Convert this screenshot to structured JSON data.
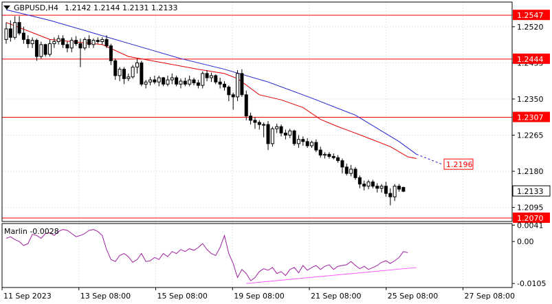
{
  "chart_data": {
    "type": "candlestick",
    "header": {
      "symbol": "GBPUSD,H4",
      "ohlc": "1.2142 1.2144 1.2131 1.2133"
    },
    "price_axis": {
      "range": [
        1.2062,
        1.2578
      ],
      "ticks": [
        "1.2520",
        "1.2435",
        "1.2350",
        "1.2265",
        "1.2180",
        "1.2095"
      ]
    },
    "time_axis": {
      "labels": [
        "11 Sep 2023",
        "13 Sep 08:00",
        "15 Sep 08:00",
        "19 Sep 08:00",
        "21 Sep 08:00",
        "25 Sep 08:00",
        "27 Sep 08:00"
      ]
    },
    "levels": [
      {
        "value": 1.2547,
        "label": "1.2547",
        "color": "#ff0000"
      },
      {
        "value": 1.2444,
        "label": "1.2444",
        "color": "#ff0000"
      },
      {
        "value": 1.2307,
        "label": "1.2307",
        "color": "#ff0000"
      },
      {
        "value": 1.207,
        "label": "1.2070",
        "color": "#ff0000"
      }
    ],
    "current_price": {
      "value": 1.2133,
      "label": "1.2133"
    },
    "target": {
      "value": 1.2196,
      "label": "1.2196",
      "color": "#ff0000"
    },
    "candles": [
      [
        1.249,
        1.253,
        1.248,
        1.2515
      ],
      [
        1.2515,
        1.2535,
        1.2485,
        1.2495
      ],
      [
        1.2495,
        1.2545,
        1.249,
        1.253
      ],
      [
        1.253,
        1.2545,
        1.25,
        1.2505
      ],
      [
        1.2505,
        1.252,
        1.248,
        1.249
      ],
      [
        1.249,
        1.25,
        1.247,
        1.248
      ],
      [
        1.248,
        1.2495,
        1.247,
        1.2488
      ],
      [
        1.2488,
        1.2492,
        1.244,
        1.245
      ],
      [
        1.245,
        1.2485,
        1.2445,
        1.2478
      ],
      [
        1.2478,
        1.248,
        1.245,
        1.2455
      ],
      [
        1.2455,
        1.249,
        1.245,
        1.248
      ],
      [
        1.248,
        1.2495,
        1.247,
        1.2485
      ],
      [
        1.2485,
        1.25,
        1.2478,
        1.2492
      ],
      [
        1.2492,
        1.25,
        1.247,
        1.2478
      ],
      [
        1.2478,
        1.2485,
        1.246,
        1.247
      ],
      [
        1.247,
        1.2495,
        1.246,
        1.2488
      ],
      [
        1.2488,
        1.2498,
        1.2475,
        1.248
      ],
      [
        1.248,
        1.2492,
        1.2425,
        1.247
      ],
      [
        1.247,
        1.2495,
        1.2465,
        1.249
      ],
      [
        1.249,
        1.25,
        1.247,
        1.2478
      ],
      [
        1.2478,
        1.2492,
        1.247,
        1.2488
      ],
      [
        1.2488,
        1.2495,
        1.248,
        1.2485
      ],
      [
        1.2485,
        1.2495,
        1.2478,
        1.249
      ],
      [
        1.249,
        1.25,
        1.247,
        1.2475
      ],
      [
        1.2475,
        1.248,
        1.243,
        1.244
      ],
      [
        1.244,
        1.2445,
        1.2395,
        1.2405
      ],
      [
        1.2405,
        1.2425,
        1.2392,
        1.242
      ],
      [
        1.242,
        1.2425,
        1.2385,
        1.2398
      ],
      [
        1.2398,
        1.241,
        1.2392,
        1.2402
      ],
      [
        1.2402,
        1.243,
        1.2398,
        1.2425
      ],
      [
        1.2425,
        1.2445,
        1.241,
        1.2435
      ],
      [
        1.2435,
        1.244,
        1.238,
        1.2385
      ],
      [
        1.2385,
        1.2395,
        1.2375,
        1.239
      ],
      [
        1.239,
        1.2402,
        1.2382,
        1.2395
      ],
      [
        1.2395,
        1.2405,
        1.2385,
        1.239
      ],
      [
        1.239,
        1.2405,
        1.238,
        1.24
      ],
      [
        1.24,
        1.2402,
        1.238,
        1.2385
      ],
      [
        1.2385,
        1.2405,
        1.238,
        1.2395
      ],
      [
        1.2395,
        1.241,
        1.2385,
        1.24
      ],
      [
        1.24,
        1.2405,
        1.238,
        1.2385
      ],
      [
        1.2385,
        1.2398,
        1.2375,
        1.2392
      ],
      [
        1.2392,
        1.24,
        1.238,
        1.2385
      ],
      [
        1.2385,
        1.2405,
        1.238,
        1.2395
      ],
      [
        1.2395,
        1.24,
        1.2382,
        1.2388
      ],
      [
        1.2388,
        1.2395,
        1.2375,
        1.2382
      ],
      [
        1.2382,
        1.2415,
        1.2375,
        1.241
      ],
      [
        1.241,
        1.2418,
        1.2392,
        1.24
      ],
      [
        1.24,
        1.2412,
        1.239,
        1.2405
      ],
      [
        1.2405,
        1.2408,
        1.2385,
        1.239
      ],
      [
        1.239,
        1.24,
        1.2375,
        1.2385
      ],
      [
        1.2385,
        1.2392,
        1.237,
        1.2378
      ],
      [
        1.2378,
        1.2382,
        1.2345,
        1.236
      ],
      [
        1.236,
        1.2365,
        1.2325,
        1.2355
      ],
      [
        1.2355,
        1.2418,
        1.2345,
        1.241
      ],
      [
        1.241,
        1.242,
        1.2355,
        1.236
      ],
      [
        1.236,
        1.237,
        1.23,
        1.231
      ],
      [
        1.231,
        1.2318,
        1.229,
        1.23
      ],
      [
        1.23,
        1.2308,
        1.228,
        1.2295
      ],
      [
        1.2295,
        1.23,
        1.2278,
        1.229
      ],
      [
        1.229,
        1.2295,
        1.226,
        1.229
      ],
      [
        1.229,
        1.2298,
        1.223,
        1.2245
      ],
      [
        1.2245,
        1.2285,
        1.2238,
        1.228
      ],
      [
        1.228,
        1.2292,
        1.227,
        1.2285
      ],
      [
        1.2285,
        1.229,
        1.2262,
        1.227
      ],
      [
        1.227,
        1.2278,
        1.2255,
        1.2265
      ],
      [
        1.2265,
        1.228,
        1.2258,
        1.2275
      ],
      [
        1.2275,
        1.2278,
        1.224,
        1.2245
      ],
      [
        1.2245,
        1.2265,
        1.2235,
        1.2255
      ],
      [
        1.2255,
        1.2262,
        1.224,
        1.225
      ],
      [
        1.225,
        1.2258,
        1.2235,
        1.224
      ],
      [
        1.224,
        1.2252,
        1.2235,
        1.2248
      ],
      [
        1.2248,
        1.2255,
        1.2225,
        1.223
      ],
      [
        1.223,
        1.2238,
        1.2212,
        1.2218
      ],
      [
        1.2218,
        1.2225,
        1.221,
        1.222
      ],
      [
        1.222,
        1.2225,
        1.221,
        1.2215
      ],
      [
        1.2215,
        1.2222,
        1.2208,
        1.2212
      ],
      [
        1.2212,
        1.2218,
        1.22,
        1.2205
      ],
      [
        1.2205,
        1.221,
        1.2175,
        1.219
      ],
      [
        1.219,
        1.2198,
        1.217,
        1.2175
      ],
      [
        1.2175,
        1.2195,
        1.2168,
        1.2185
      ],
      [
        1.2185,
        1.219,
        1.216,
        1.2165
      ],
      [
        1.2165,
        1.217,
        1.214,
        1.215
      ],
      [
        1.215,
        1.2158,
        1.2135,
        1.2145
      ],
      [
        1.2145,
        1.216,
        1.2138,
        1.2155
      ],
      [
        1.2155,
        1.216,
        1.214,
        1.2145
      ],
      [
        1.2145,
        1.2152,
        1.213,
        1.214
      ],
      [
        1.214,
        1.215,
        1.213,
        1.2145
      ],
      [
        1.2145,
        1.2155,
        1.212,
        1.2128
      ],
      [
        1.2128,
        1.214,
        1.21,
        1.212
      ],
      [
        1.212,
        1.215,
        1.211,
        1.2145
      ],
      [
        1.2145,
        1.215,
        1.2132,
        1.2138
      ],
      [
        1.2142,
        1.2144,
        1.2131,
        1.2133
      ]
    ],
    "ma_red": {
      "color": "#e00000",
      "points": [
        [
          0,
          1.253
        ],
        [
          5,
          1.251
        ],
        [
          10,
          1.249
        ],
        [
          16,
          1.2484
        ],
        [
          22,
          1.2478
        ],
        [
          28,
          1.245
        ],
        [
          36,
          1.2435
        ],
        [
          44,
          1.242
        ],
        [
          50,
          1.241
        ],
        [
          53,
          1.2398
        ],
        [
          58,
          1.236
        ],
        [
          63,
          1.2348
        ],
        [
          68,
          1.233
        ],
        [
          72,
          1.2302
        ],
        [
          76,
          1.2285
        ],
        [
          82,
          1.2262
        ],
        [
          88,
          1.2238
        ],
        [
          92,
          1.2214
        ],
        [
          94,
          1.221
        ]
      ]
    },
    "ma_blue": {
      "color": "#2222cc",
      "points": [
        [
          0,
          1.256
        ],
        [
          10,
          1.2535
        ],
        [
          20,
          1.2505
        ],
        [
          30,
          1.2475
        ],
        [
          40,
          1.2445
        ],
        [
          50,
          1.242
        ],
        [
          60,
          1.239
        ],
        [
          70,
          1.2352
        ],
        [
          80,
          1.2312
        ],
        [
          90,
          1.225
        ],
        [
          94,
          1.222
        ]
      ],
      "projection": [
        [
          94,
          1.222
        ],
        [
          100,
          1.2196
        ]
      ]
    },
    "indicator": {
      "name": "Marlin",
      "value_text": "-0.0028",
      "label": "Marlin -0.0028",
      "range": [
        -0.0115,
        0.0045
      ],
      "ticks": [
        "0.0041",
        "0.00",
        "-0.0105"
      ],
      "color": "#a020a0",
      "values": [
        0.0008,
        0.0012,
        0.0005,
        0.0,
        -0.001,
        -0.0005,
        0.0018,
        0.0015,
        0.0008,
        0.002,
        0.0022,
        0.0015,
        0.0025,
        0.003,
        0.0028,
        0.002,
        0.0012,
        0.0015,
        0.002,
        0.0028,
        0.003,
        0.0025,
        0.0015,
        -0.002,
        -0.0045,
        -0.005,
        -0.0035,
        -0.003,
        -0.0038,
        -0.0052,
        -0.0045,
        -0.003,
        -0.005,
        -0.0048,
        -0.004,
        -0.0045,
        -0.003,
        -0.0038,
        -0.0025,
        -0.003,
        -0.002,
        -0.0025,
        -0.0018,
        -0.0022,
        -0.0015,
        -0.0005,
        -0.002,
        -0.003,
        -0.0035,
        -0.0015,
        0.0015,
        -0.003,
        -0.0055,
        -0.009,
        -0.007,
        -0.008,
        -0.0098,
        -0.009,
        -0.0075,
        -0.0068,
        -0.0072,
        -0.0065,
        -0.008,
        -0.0075,
        -0.0085,
        -0.007,
        -0.0065,
        -0.0078,
        -0.006,
        -0.0072,
        -0.0065,
        -0.006,
        -0.007,
        -0.0062,
        -0.0058,
        -0.007,
        -0.0062,
        -0.006,
        -0.0058,
        -0.005,
        -0.006,
        -0.0068,
        -0.0062,
        -0.007,
        -0.0065,
        -0.006,
        -0.0052,
        -0.0048,
        -0.0055,
        -0.0048,
        -0.004,
        -0.0025,
        -0.0028
      ],
      "trendline": {
        "color": "#ff55ff",
        "from": [
          55,
          -0.0105
        ],
        "to": [
          94,
          -0.0065
        ]
      }
    }
  }
}
